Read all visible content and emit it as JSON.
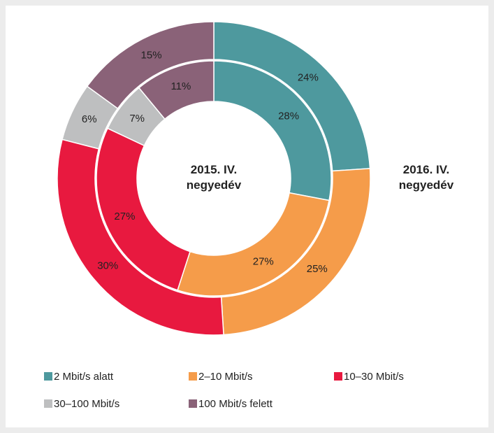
{
  "chart_data": {
    "type": "donut",
    "categories": [
      "2 Mbit/s alatt",
      "2–10 Mbit/s",
      "10–30 Mbit/s",
      "30–100 Mbit/s",
      "100 Mbit/s felett"
    ],
    "colors": [
      "#4e999e",
      "#f59c4a",
      "#e8193f",
      "#bebfc0",
      "#8a6278"
    ],
    "series": [
      {
        "name": "2015. IV. negyedév",
        "values": [
          28,
          27,
          27,
          7,
          11
        ],
        "value_labels": [
          "28%",
          "27%",
          "27%",
          "7%",
          "11%"
        ]
      },
      {
        "name": "2016. IV. negyedév",
        "values": [
          24,
          25,
          30,
          6,
          15
        ],
        "value_labels": [
          "24%",
          "25%",
          "30%",
          "6%",
          "15%"
        ]
      }
    ]
  }
}
